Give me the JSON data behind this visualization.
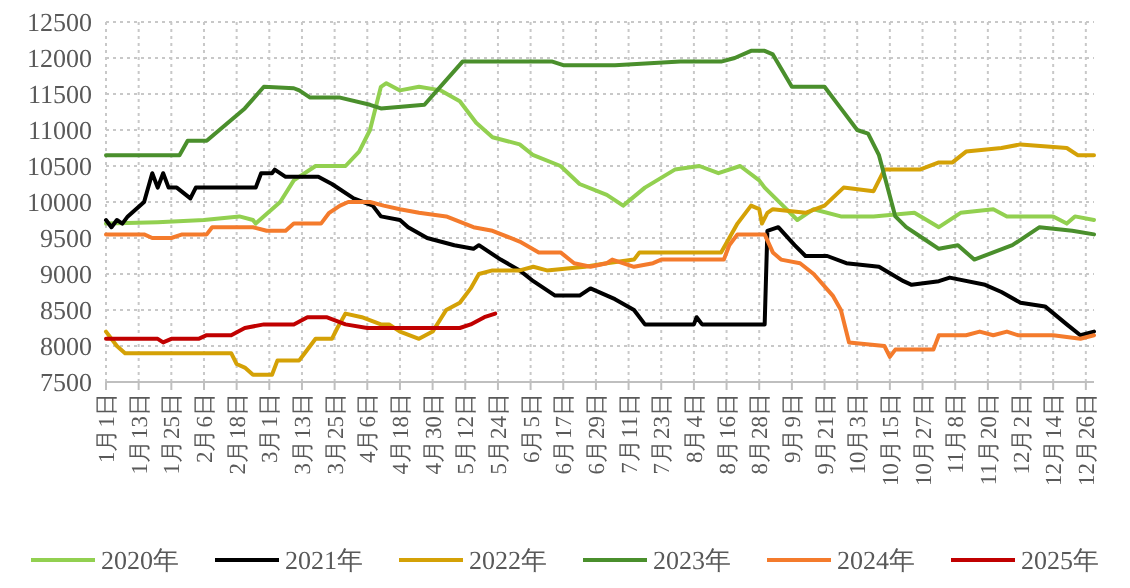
{
  "chart_data": {
    "type": "line",
    "xlim": [
      "--01-01",
      "--12-29"
    ],
    "ylim": [
      7500,
      12500
    ],
    "yticks": [
      7500,
      8000,
      8500,
      9000,
      9500,
      10000,
      10500,
      11000,
      11500,
      12000,
      12500
    ],
    "xticks": [
      {
        "value": "--01-01",
        "label": "1月1日"
      },
      {
        "value": "--01-13",
        "label": "1月13日"
      },
      {
        "value": "--01-25",
        "label": "1月25日"
      },
      {
        "value": "--02-06",
        "label": "2月6日"
      },
      {
        "value": "--02-18",
        "label": "2月18日"
      },
      {
        "value": "--03-01",
        "label": "3月1日"
      },
      {
        "value": "--03-13",
        "label": "3月13日"
      },
      {
        "value": "--03-25",
        "label": "3月25日"
      },
      {
        "value": "--04-06",
        "label": "4月6日"
      },
      {
        "value": "--04-18",
        "label": "4月18日"
      },
      {
        "value": "--04-30",
        "label": "4月30日"
      },
      {
        "value": "--05-12",
        "label": "5月12日"
      },
      {
        "value": "--05-24",
        "label": "5月24日"
      },
      {
        "value": "--06-05",
        "label": "6月5日"
      },
      {
        "value": "--06-17",
        "label": "6月17日"
      },
      {
        "value": "--06-29",
        "label": "6月29日"
      },
      {
        "value": "--07-11",
        "label": "7月11日"
      },
      {
        "value": "--07-23",
        "label": "7月23日"
      },
      {
        "value": "--08-04",
        "label": "8月4日"
      },
      {
        "value": "--08-16",
        "label": "8月16日"
      },
      {
        "value": "--08-28",
        "label": "8月28日"
      },
      {
        "value": "--09-09",
        "label": "9月9日"
      },
      {
        "value": "--09-21",
        "label": "9月21日"
      },
      {
        "value": "--10-03",
        "label": "10月3日"
      },
      {
        "value": "--10-15",
        "label": "10月15日"
      },
      {
        "value": "--10-27",
        "label": "10月27日"
      },
      {
        "value": "--11-08",
        "label": "11月8日"
      },
      {
        "value": "--11-20",
        "label": "11月20日"
      },
      {
        "value": "--12-02",
        "label": "12月2日"
      },
      {
        "value": "--12-14",
        "label": "12月14日"
      },
      {
        "value": "--12-26",
        "label": "12月26日"
      }
    ],
    "grid": true,
    "legend": "bottom",
    "marker": "none",
    "line_style": "solid",
    "series": [
      {
        "name": "2020年",
        "color": "#92d050",
        "x": [
          "--01-01",
          "--01-20",
          "--02-06",
          "--02-19",
          "--02-24",
          "--02-25",
          "--03-05",
          "--03-10",
          "--03-18",
          "--03-29",
          "--04-03",
          "--04-07",
          "--04-11",
          "--04-13",
          "--04-18",
          "--04-25",
          "--05-03",
          "--05-10",
          "--05-16",
          "--05-22",
          "--06-01",
          "--06-06",
          "--06-16",
          "--06-23",
          "--07-03",
          "--07-09",
          "--07-17",
          "--07-28",
          "--08-06",
          "--08-13",
          "--08-21",
          "--08-28",
          "--08-30",
          "--09-07",
          "--09-11",
          "--09-17",
          "--09-27",
          "--10-09",
          "--10-24",
          "--11-02",
          "--11-10",
          "--11-22",
          "--11-27",
          "--12-14",
          "--12-19",
          "--12-22",
          "--12-29"
        ],
        "values": [
          9700,
          9720,
          9750,
          9800,
          9750,
          9700,
          10000,
          10300,
          10500,
          10500,
          10700,
          11000,
          11600,
          11650,
          11550,
          11600,
          11550,
          11400,
          11100,
          10900,
          10800,
          10650,
          10500,
          10250,
          10100,
          9950,
          10200,
          10450,
          10500,
          10400,
          10500,
          10300,
          10200,
          9900,
          9750,
          9900,
          9800,
          9800,
          9850,
          9650,
          9850,
          9900,
          9800,
          9800,
          9700,
          9800,
          9750
        ]
      },
      {
        "name": "2021年",
        "color": "#000000",
        "x": [
          "--01-01",
          "--01-03",
          "--01-05",
          "--01-07",
          "--01-09",
          "--01-15",
          "--01-18",
          "--01-20",
          "--01-22",
          "--01-24",
          "--01-27",
          "--02-01",
          "--02-03",
          "--02-25",
          "--02-27",
          "--03-02",
          "--03-03",
          "--03-07",
          "--03-19",
          "--03-24",
          "--04-01",
          "--04-08",
          "--04-11",
          "--04-18",
          "--04-21",
          "--04-28",
          "--05-08",
          "--05-15",
          "--05-17",
          "--05-25",
          "--06-01",
          "--06-06",
          "--06-14",
          "--06-23",
          "--06-27",
          "--07-06",
          "--07-13",
          "--07-17",
          "--08-04",
          "--08-05",
          "--08-07",
          "--08-30",
          "--08-31",
          "--09-04",
          "--09-10",
          "--09-14",
          "--09-22",
          "--09-29",
          "--10-11",
          "--10-20",
          "--10-23",
          "--11-02",
          "--11-06",
          "--11-19",
          "--11-25",
          "--12-02",
          "--12-11",
          "--12-19",
          "--12-24",
          "--12-29"
        ],
        "values": [
          9750,
          9650,
          9750,
          9700,
          9800,
          10000,
          10400,
          10200,
          10400,
          10200,
          10200,
          10050,
          10200,
          10200,
          10400,
          10400,
          10450,
          10350,
          10350,
          10250,
          10050,
          9950,
          9800,
          9750,
          9650,
          9500,
          9400,
          9350,
          9400,
          9200,
          9050,
          8900,
          8700,
          8700,
          8800,
          8650,
          8500,
          8300,
          8300,
          8400,
          8300,
          8300,
          9600,
          9650,
          9400,
          9250,
          9250,
          9150,
          9100,
          8900,
          8850,
          8900,
          8950,
          8850,
          8750,
          8600,
          8550,
          8300,
          8150,
          8200
        ]
      },
      {
        "name": "2022年",
        "color": "#d4a106",
        "x": [
          "--01-01",
          "--01-05",
          "--01-08",
          "--02-16",
          "--02-18",
          "--02-21",
          "--02-24",
          "--03-02",
          "--03-04",
          "--03-12",
          "--03-14",
          "--03-18",
          "--03-24",
          "--03-26",
          "--03-29",
          "--04-04",
          "--04-11",
          "--04-14",
          "--04-18",
          "--04-25",
          "--04-30",
          "--05-05",
          "--05-10",
          "--05-14",
          "--05-17",
          "--05-22",
          "--06-01",
          "--06-06",
          "--06-11",
          "--06-25",
          "--07-03",
          "--07-13",
          "--07-15",
          "--08-14",
          "--08-17",
          "--08-20",
          "--08-25",
          "--08-28",
          "--08-29",
          "--08-31",
          "--09-02",
          "--09-14",
          "--09-21",
          "--09-28",
          "--10-09",
          "--10-13",
          "--10-26",
          "--11-02",
          "--11-07",
          "--11-12",
          "--11-25",
          "--12-02",
          "--12-19",
          "--12-23",
          "--12-29"
        ],
        "values": [
          8200,
          8000,
          7900,
          7900,
          7750,
          7700,
          7600,
          7600,
          7800,
          7800,
          7900,
          8100,
          8100,
          8250,
          8450,
          8400,
          8300,
          8300,
          8200,
          8100,
          8200,
          8500,
          8600,
          8800,
          9000,
          9050,
          9050,
          9100,
          9050,
          9100,
          9150,
          9200,
          9300,
          9300,
          9500,
          9700,
          9950,
          9900,
          9700,
          9850,
          9900,
          9850,
          9950,
          10200,
          10150,
          10450,
          10450,
          10550,
          10550,
          10700,
          10750,
          10800,
          10750,
          10650,
          10650
        ]
      },
      {
        "name": "2023年",
        "color": "#4a8f2c",
        "x": [
          "--01-01",
          "--01-28",
          "--01-31",
          "--02-07",
          "--02-21",
          "--02-28",
          "--03-10",
          "--03-12",
          "--03-16",
          "--03-27",
          "--04-07",
          "--04-11",
          "--04-27",
          "--05-11",
          "--06-13",
          "--06-17",
          "--07-06",
          "--07-30",
          "--08-14",
          "--08-19",
          "--08-25",
          "--08-30",
          "--09-02",
          "--09-09",
          "--09-21",
          "--09-27",
          "--10-03",
          "--10-07",
          "--10-11",
          "--10-17",
          "--10-21",
          "--10-27",
          "--11-02",
          "--11-09",
          "--11-15",
          "--11-22",
          "--11-29",
          "--12-05",
          "--12-09",
          "--12-21",
          "--12-29"
        ],
        "values": [
          10650,
          10650,
          10850,
          10850,
          11300,
          11600,
          11580,
          11550,
          11450,
          11450,
          11350,
          11300,
          11350,
          11950,
          11950,
          11900,
          11900,
          11950,
          11950,
          12000,
          12100,
          12100,
          12050,
          11600,
          11600,
          11300,
          11000,
          10950,
          10650,
          9800,
          9650,
          9500,
          9350,
          9400,
          9200,
          9300,
          9400,
          9550,
          9650,
          9600,
          9550
        ]
      },
      {
        "name": "2024年",
        "color": "#f47b2c",
        "x": [
          "--01-01",
          "--01-15",
          "--01-18",
          "--01-25",
          "--01-29",
          "--02-07",
          "--02-09",
          "--02-24",
          "--02-29",
          "--03-07",
          "--03-10",
          "--03-20",
          "--03-23",
          "--03-27",
          "--03-30",
          "--04-07",
          "--04-12",
          "--04-18",
          "--04-25",
          "--05-05",
          "--05-15",
          "--05-22",
          "--06-01",
          "--06-08",
          "--06-16",
          "--06-21",
          "--06-27",
          "--07-03",
          "--07-05",
          "--07-13",
          "--07-20",
          "--07-23",
          "--08-15",
          "--08-17",
          "--08-20",
          "--08-30",
          "--09-02",
          "--09-05",
          "--09-12",
          "--09-17",
          "--09-24",
          "--09-27",
          "--09-30",
          "--10-13",
          "--10-15",
          "--10-17",
          "--10-31",
          "--11-02",
          "--11-12",
          "--11-17",
          "--11-22",
          "--11-27",
          "--12-01",
          "--12-14",
          "--12-24",
          "--12-29"
        ],
        "values": [
          9550,
          9550,
          9500,
          9500,
          9550,
          9550,
          9650,
          9650,
          9600,
          9600,
          9700,
          9700,
          9850,
          9950,
          10000,
          10000,
          9950,
          9900,
          9850,
          9800,
          9650,
          9600,
          9450,
          9300,
          9300,
          9150,
          9100,
          9150,
          9200,
          9100,
          9150,
          9200,
          9200,
          9400,
          9550,
          9550,
          9300,
          9200,
          9150,
          9000,
          8700,
          8500,
          8050,
          8000,
          7850,
          7950,
          7950,
          8150,
          8150,
          8200,
          8150,
          8200,
          8150,
          8150,
          8100,
          8150
        ]
      },
      {
        "name": "2025年",
        "color": "#c00000",
        "x": [
          "--01-01",
          "--01-20",
          "--01-22",
          "--01-25",
          "--02-04",
          "--02-07",
          "--02-16",
          "--02-21",
          "--02-28",
          "--03-10",
          "--03-15",
          "--03-22",
          "--03-29",
          "--04-06",
          "--04-11",
          "--05-10",
          "--05-14",
          "--05-19",
          "--05-23"
        ],
        "values": [
          8100,
          8100,
          8050,
          8100,
          8100,
          8150,
          8150,
          8250,
          8300,
          8300,
          8400,
          8400,
          8300,
          8250,
          8250,
          8250,
          8300,
          8400,
          8450
        ]
      }
    ]
  }
}
